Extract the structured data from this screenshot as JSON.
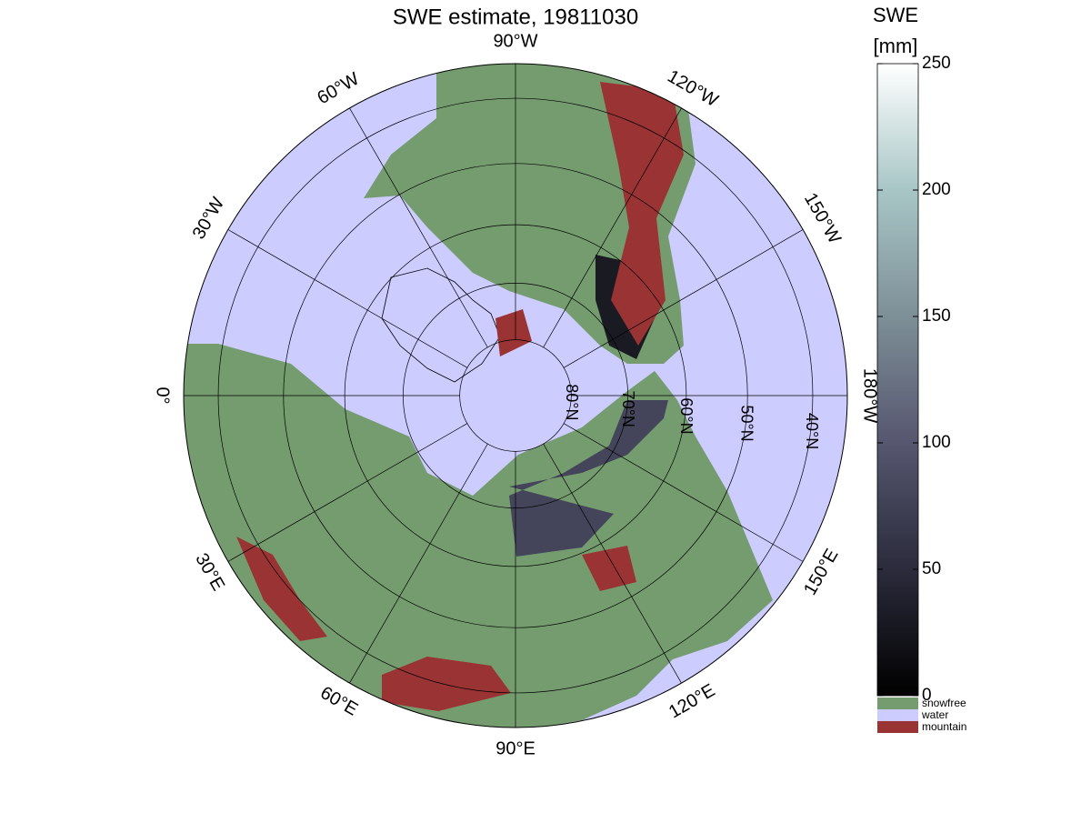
{
  "title": "SWE estimate, 19811030",
  "map": {
    "type": "polar-stereographic",
    "latlim": [
      35,
      90
    ],
    "meridians": [
      {
        "value": -90,
        "label": "90°W"
      },
      {
        "value": -60,
        "label": "60°W"
      },
      {
        "value": -30,
        "label": "30°W"
      },
      {
        "value": 0,
        "label": "0°"
      },
      {
        "value": 30,
        "label": "30°E"
      },
      {
        "value": 60,
        "label": "60°E"
      },
      {
        "value": 90,
        "label": "90°E"
      },
      {
        "value": 120,
        "label": "120°E"
      },
      {
        "value": 150,
        "label": "150°E"
      },
      {
        "value": 180,
        "label": "180°W"
      },
      {
        "value": -150,
        "label": "150°W"
      },
      {
        "value": -120,
        "label": "120°W"
      }
    ],
    "parallels": [
      {
        "value": 80,
        "label": "80°N"
      },
      {
        "value": 70,
        "label": "70°N"
      },
      {
        "value": 60,
        "label": "60°N"
      },
      {
        "value": 50,
        "label": "50°N"
      },
      {
        "value": 40,
        "label": "40°N"
      }
    ]
  },
  "colorbar": {
    "title": "SWE",
    "unit": "[mm]",
    "lim": [
      0,
      250
    ],
    "ticks": [
      0,
      50,
      100,
      150,
      200,
      250
    ],
    "colors": [
      "#000000",
      "#2b2b3c",
      "#56566f",
      "#7d8f97",
      "#a8c6c6",
      "#ffffff"
    ]
  },
  "legend": [
    {
      "label": "snowfree",
      "color": "#759c6f"
    },
    {
      "label": "water",
      "color": "#ccccff"
    },
    {
      "label": "mountain",
      "color": "#9a3333"
    }
  ]
}
